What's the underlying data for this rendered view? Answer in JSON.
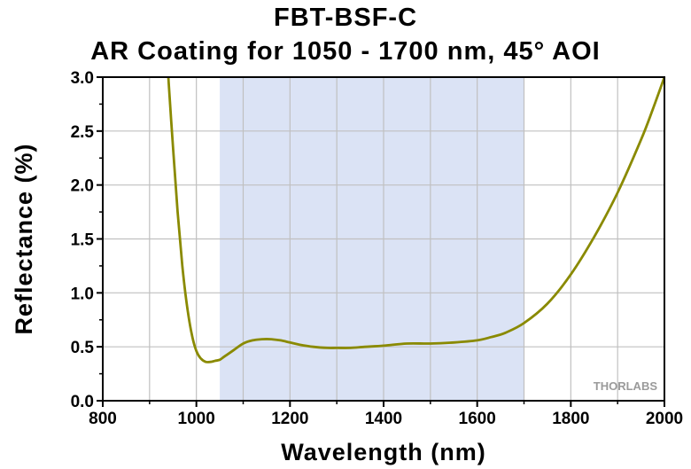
{
  "chart_data": {
    "type": "line",
    "title": "FBT-BSF-C",
    "subtitle": "AR Coating for 1050 - 1700 nm, 45° AOI",
    "xlabel": "Wavelength (nm)",
    "ylabel": "Reflectance (%)",
    "xlim": [
      800,
      2000
    ],
    "ylim": [
      0.0,
      3.0
    ],
    "xticks": [
      800,
      1000,
      1200,
      1400,
      1600,
      1800,
      2000
    ],
    "yticks": [
      "0.0",
      "0.5",
      "1.0",
      "1.5",
      "2.0",
      "2.5",
      "3.0"
    ],
    "grid": true,
    "shaded_band": [
      1050,
      1700
    ],
    "colors": {
      "line": "#8a8a00",
      "band": "#dbe3f5",
      "grid": "#c0c0c0"
    },
    "watermark": "THORLABS",
    "series": [
      {
        "x": [
          940,
          950,
          960,
          970,
          980,
          990,
          1000,
          1010,
          1020,
          1030,
          1040,
          1050,
          1060,
          1080,
          1100,
          1120,
          1140,
          1160,
          1180,
          1200,
          1220,
          1250,
          1280,
          1300,
          1330,
          1360,
          1400,
          1450,
          1500,
          1550,
          1600,
          1630,
          1660,
          1700,
          1750,
          1800,
          1850,
          1900,
          1950,
          1975,
          2000
        ],
        "y": [
          3.0,
          2.35,
          1.75,
          1.25,
          0.88,
          0.62,
          0.46,
          0.39,
          0.36,
          0.36,
          0.37,
          0.38,
          0.41,
          0.47,
          0.53,
          0.56,
          0.57,
          0.57,
          0.56,
          0.54,
          0.52,
          0.5,
          0.49,
          0.49,
          0.49,
          0.5,
          0.51,
          0.53,
          0.53,
          0.54,
          0.56,
          0.59,
          0.63,
          0.72,
          0.9,
          1.17,
          1.52,
          1.93,
          2.42,
          2.7,
          3.0
        ]
      }
    ]
  }
}
